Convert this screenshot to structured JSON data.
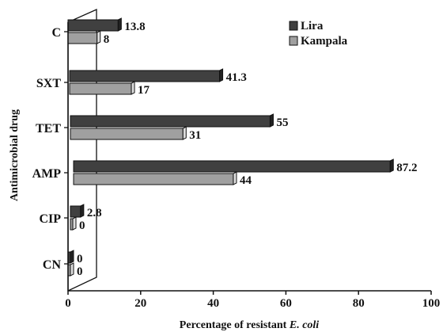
{
  "chart_data": {
    "type": "bar",
    "orientation": "horizontal",
    "categories": [
      "C",
      "SXT",
      "TET",
      "AMP",
      "CIP",
      "CN"
    ],
    "series": [
      {
        "name": "Lira",
        "values": [
          13.8,
          41.3,
          55,
          87.2,
          2.8,
          0
        ],
        "color": "#404040"
      },
      {
        "name": "Kampala",
        "values": [
          8,
          17,
          31,
          44,
          0,
          0
        ],
        "color": "#a0a0a0"
      }
    ],
    "data_labels": {
      "Lira": [
        "13.8",
        "41.3",
        "55",
        "87.2",
        "2.8",
        "0"
      ],
      "Kampala": [
        "8",
        "17",
        "31",
        "44",
        "0",
        "0"
      ]
    },
    "xlabel_prefix": "Percentage of resistant ",
    "xlabel_italic": "E. coli",
    "ylabel": "Antimicrobial drug",
    "xlim": [
      0,
      100
    ],
    "xticks": [
      0,
      20,
      40,
      60,
      80,
      100
    ],
    "xtick_labels": [
      "0",
      "20",
      "40",
      "60",
      "80",
      "100"
    ],
    "style": "3d-bar",
    "grid": false,
    "legend_position": "top-right"
  }
}
